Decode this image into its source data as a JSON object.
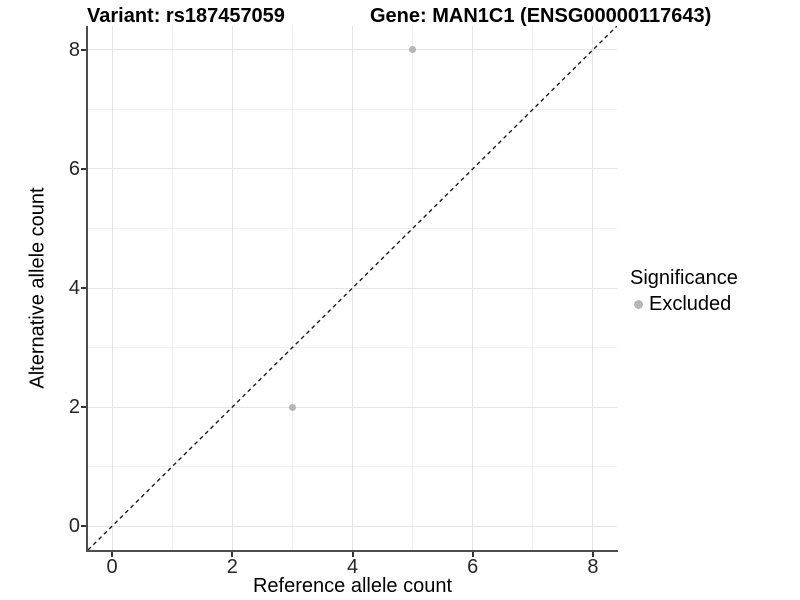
{
  "chart_data": {
    "type": "scatter",
    "title_left": "Variant: rs187457059",
    "title_right": "Gene: MAN1C1 (ENSG00000117643)",
    "xlabel": "Reference allele count",
    "ylabel": "Alternative allele count",
    "xlim": [
      -0.4,
      8.4
    ],
    "ylim": [
      -0.4,
      8.4
    ],
    "xticks": [
      0,
      2,
      4,
      6,
      8
    ],
    "yticks": [
      0,
      2,
      4,
      6,
      8
    ],
    "minor_xticks": [
      1,
      3,
      5,
      7
    ],
    "minor_yticks": [
      1,
      3,
      5,
      7
    ],
    "grid": "major+minor",
    "points": [
      {
        "x": 5,
        "y": 8,
        "series": "Excluded"
      },
      {
        "x": 3,
        "y": 2,
        "series": "Excluded"
      }
    ],
    "identity_line": {
      "slope": 1,
      "intercept": 0,
      "style": "dashed",
      "color": "#1a1a1a"
    },
    "legend": {
      "position": "right",
      "title": "Significance",
      "items": [
        {
          "label": "Excluded",
          "color": "#b6b6b6"
        }
      ]
    },
    "colors": {
      "point": "#b6b6b6",
      "grid_major": "#e4e4e4",
      "grid_minor": "#f1f1f1",
      "axis_line": "#4d4d4d",
      "tick_mark": "#333333"
    }
  }
}
